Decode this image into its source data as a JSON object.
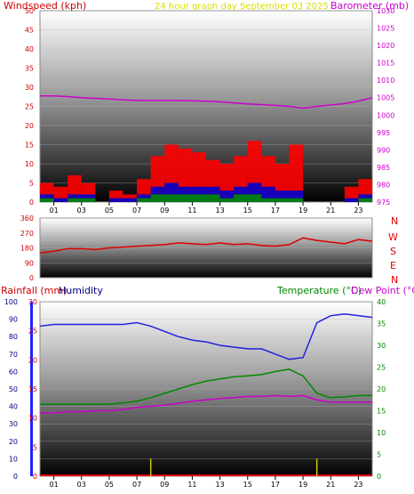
{
  "chart_data": [
    {
      "type": "line",
      "title": "24 hour graph day    September 03 2025",
      "left_axis_label": "Windspeed (kph)",
      "right_axis_label": "Barometer (mb)",
      "x_tick_labels": [
        "01",
        "03",
        "05",
        "07",
        "09",
        "11",
        "13",
        "15",
        "17",
        "19",
        "21",
        "23"
      ],
      "left_ylim": [
        0,
        50
      ],
      "left_ticks": [
        "0",
        "5",
        "10",
        "15",
        "20",
        "25",
        "30",
        "35",
        "40",
        "45",
        "50"
      ],
      "right_ylim": [
        975,
        1030
      ],
      "right_ticks": [
        "975",
        "980",
        "985",
        "990",
        "995",
        "1000",
        "1005",
        "1010",
        "1015",
        "1020",
        "1025",
        "1030"
      ],
      "series": [
        {
          "name": "Barometer",
          "axis": "right",
          "color": "#cc00cc",
          "x": [
            0,
            1,
            2,
            3,
            4,
            5,
            6,
            7,
            8,
            9,
            10,
            11,
            12,
            13,
            14,
            15,
            16,
            17,
            18,
            19,
            20,
            21,
            22,
            23,
            24
          ],
          "values": [
            1005.5,
            1005.5,
            1005.3,
            1005.0,
            1004.8,
            1004.6,
            1004.4,
            1004.2,
            1004.2,
            1004.2,
            1004.2,
            1004.1,
            1004.0,
            1003.8,
            1003.5,
            1003.2,
            1003.0,
            1002.8,
            1002.5,
            1002.0,
            1002.5,
            1002.9,
            1003.3,
            1004.0,
            1005.0
          ]
        },
        {
          "name": "Gust",
          "axis": "left",
          "color": "#ff0000",
          "x": [
            0,
            1,
            2,
            3,
            4,
            5,
            6,
            7,
            8,
            9,
            10,
            11,
            12,
            13,
            14,
            15,
            16,
            17,
            18,
            19,
            20,
            21,
            22,
            23,
            24
          ],
          "values": [
            5,
            4,
            7,
            5,
            0,
            3,
            2,
            6,
            12,
            15,
            14,
            13,
            11,
            10,
            12,
            16,
            12,
            10,
            15,
            0,
            0,
            0,
            4,
            6,
            7
          ]
        },
        {
          "name": "Wind",
          "axis": "left",
          "color": "#0000cc",
          "x": [
            0,
            1,
            2,
            3,
            4,
            5,
            6,
            7,
            8,
            9,
            10,
            11,
            12,
            13,
            14,
            15,
            16,
            17,
            18,
            19,
            20,
            21,
            22,
            23,
            24
          ],
          "values": [
            2,
            1,
            2,
            2,
            0,
            1,
            1,
            2,
            4,
            5,
            4,
            4,
            4,
            3,
            4,
            5,
            4,
            3,
            3,
            0,
            0,
            0,
            1,
            2,
            2
          ]
        },
        {
          "name": "Wind average",
          "axis": "left",
          "color": "#008800",
          "x": [
            0,
            1,
            2,
            3,
            4,
            5,
            6,
            7,
            8,
            9,
            10,
            11,
            12,
            13,
            14,
            15,
            16,
            17,
            18,
            19,
            20,
            21,
            22,
            23,
            24
          ],
          "values": [
            1,
            0,
            1,
            1,
            0,
            0,
            0,
            1,
            2,
            2,
            2,
            2,
            2,
            1,
            2,
            2,
            1,
            1,
            1,
            0,
            0,
            0,
            0,
            1,
            1
          ]
        }
      ]
    },
    {
      "type": "line",
      "left_ylim": [
        0,
        360
      ],
      "left_ticks": [
        "0",
        "90",
        "180",
        "270",
        "360"
      ],
      "compass_labels": [
        "N",
        "W",
        "S",
        "E",
        "N"
      ],
      "series": [
        {
          "name": "Wind direction",
          "color": "#dd0000",
          "x": [
            0,
            1,
            2,
            3,
            4,
            5,
            6,
            7,
            8,
            9,
            10,
            11,
            12,
            13,
            14,
            15,
            16,
            17,
            18,
            19,
            20,
            21,
            22,
            23,
            24
          ],
          "values": [
            150,
            160,
            175,
            175,
            170,
            180,
            185,
            190,
            195,
            200,
            210,
            205,
            200,
            210,
            200,
            205,
            195,
            190,
            200,
            240,
            225,
            215,
            205,
            230,
            220
          ]
        }
      ]
    },
    {
      "type": "line",
      "left_axis_label_rain": "Rainfall (mm)",
      "left_axis_label_humidity": "Humidity",
      "right_axis_label_temp": "Temperature (°C)",
      "right_axis_label_dew": "Dew Point (°C)",
      "x_tick_labels": [
        "01",
        "03",
        "05",
        "07",
        "09",
        "11",
        "13",
        "15",
        "17",
        "19",
        "21",
        "23"
      ],
      "humidity_ylim": [
        0,
        100
      ],
      "humidity_ticks": [
        "0",
        "10",
        "20",
        "30",
        "40",
        "50",
        "60",
        "70",
        "80",
        "90",
        "100"
      ],
      "rain_ylim": [
        0,
        30
      ],
      "rain_ticks": [
        "0",
        "5",
        "10",
        "15",
        "20",
        "25",
        "30"
      ],
      "temp_ylim": [
        0,
        40
      ],
      "temp_ticks": [
        "0",
        "5",
        "10",
        "15",
        "20",
        "25",
        "30",
        "35",
        "40"
      ],
      "series": [
        {
          "name": "Humidity",
          "axis": "humidity",
          "color": "#2222dd",
          "x": [
            0,
            1,
            2,
            3,
            4,
            5,
            6,
            7,
            8,
            9,
            10,
            11,
            12,
            13,
            14,
            15,
            16,
            17,
            18,
            19,
            20,
            21,
            22,
            23,
            24
          ],
          "values": [
            86,
            87,
            87,
            87,
            87,
            87,
            87,
            88,
            86,
            83,
            80,
            78,
            77,
            75,
            74,
            73,
            73,
            70,
            67,
            68,
            88,
            92,
            93,
            92,
            91
          ]
        },
        {
          "name": "Temperature",
          "axis": "temp",
          "color": "#008800",
          "x": [
            0,
            1,
            2,
            3,
            4,
            5,
            6,
            7,
            8,
            9,
            10,
            11,
            12,
            13,
            14,
            15,
            16,
            17,
            18,
            19,
            20,
            21,
            22,
            23,
            24
          ],
          "values": [
            16.5,
            16.5,
            16.5,
            16.5,
            16.5,
            16.5,
            16.8,
            17.2,
            18.0,
            19.0,
            20.0,
            21.0,
            21.8,
            22.3,
            22.8,
            23.0,
            23.3,
            24.0,
            24.5,
            23.0,
            19.0,
            18.0,
            18.2,
            18.5,
            18.5
          ]
        },
        {
          "name": "Dew Point",
          "axis": "temp",
          "color": "#cc00cc",
          "x": [
            0,
            1,
            2,
            3,
            4,
            5,
            6,
            7,
            8,
            9,
            10,
            11,
            12,
            13,
            14,
            15,
            16,
            17,
            18,
            19,
            20,
            21,
            22,
            23,
            24
          ],
          "values": [
            14.5,
            14.5,
            14.8,
            14.8,
            15.0,
            15.0,
            15.3,
            15.8,
            16.0,
            16.3,
            16.7,
            17.2,
            17.5,
            17.8,
            18.0,
            18.3,
            18.3,
            18.5,
            18.3,
            18.5,
            17.5,
            17.0,
            17.0,
            17.0,
            17.0
          ]
        },
        {
          "name": "Rainfall",
          "axis": "rain",
          "color": "#cccc00",
          "x": [
            8,
            20
          ],
          "values": [
            3,
            3
          ]
        }
      ]
    }
  ]
}
